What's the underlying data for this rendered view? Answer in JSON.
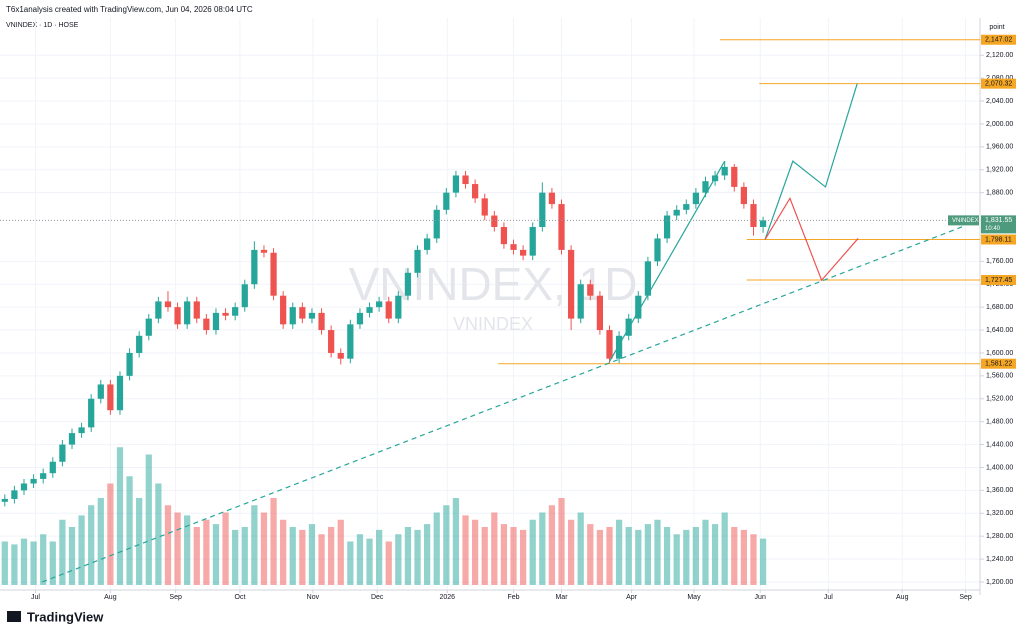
{
  "chart_data": {
    "type": "candlestick",
    "header": "T6x1analysis created with TradingView.com, Jun 04, 2026 08:04 UTC",
    "symbol_line": "VNINDEX · 1D · HOSE",
    "watermark": "VNINDEX, 1D",
    "watermark_sub": "VNINDEX",
    "axis_title": "point",
    "brand": "TradingView",
    "up_color": "#26a69a",
    "down_color": "#ef5350",
    "ylim": [
      1186,
      2185
    ],
    "yticks": [
      {
        "value": 1200,
        "label": "1,200.00"
      },
      {
        "value": 1240,
        "label": "1,240.00"
      },
      {
        "value": 1280,
        "label": "1,280.00"
      },
      {
        "value": 1320,
        "label": "1,320.00"
      },
      {
        "value": 1360,
        "label": "1,360.00"
      },
      {
        "value": 1400,
        "label": "1,400.00"
      },
      {
        "value": 1440,
        "label": "1,440.00"
      },
      {
        "value": 1480,
        "label": "1,480.00"
      },
      {
        "value": 1520,
        "label": "1,520.00"
      },
      {
        "value": 1560,
        "label": "1,560.00"
      },
      {
        "value": 1600,
        "label": "1,600.00"
      },
      {
        "value": 1640,
        "label": "1,640.00"
      },
      {
        "value": 1680,
        "label": "1,680.00"
      },
      {
        "value": 1720,
        "label": "1,720.00"
      },
      {
        "value": 1760,
        "label": "1,760.00"
      },
      {
        "value": 1880,
        "label": "1,880.00"
      },
      {
        "value": 1920,
        "label": "1,920.00"
      },
      {
        "value": 1960,
        "label": "1,960.00"
      },
      {
        "value": 2000,
        "label": "2,000.00"
      },
      {
        "value": 2040,
        "label": "2,040.00"
      },
      {
        "value": 2080,
        "label": "2,080.00"
      },
      {
        "value": 2120,
        "label": "2,120.00"
      }
    ],
    "xlim": [
      -0.5,
      101.6
    ],
    "xticks": [
      {
        "value": 3.2,
        "label": "Jul"
      },
      {
        "value": 11,
        "label": "Aug"
      },
      {
        "value": 17.8,
        "label": "Sep"
      },
      {
        "value": 24.5,
        "label": "Oct"
      },
      {
        "value": 32.1,
        "label": "Nov"
      },
      {
        "value": 38.8,
        "label": "Dec"
      },
      {
        "value": 46.1,
        "label": "2026"
      },
      {
        "value": 53,
        "label": "Feb"
      },
      {
        "value": 58,
        "label": "Mar"
      },
      {
        "value": 65.3,
        "label": "Apr"
      },
      {
        "value": 71.8,
        "label": "May"
      },
      {
        "value": 78.7,
        "label": "Jun"
      },
      {
        "value": 85.8,
        "label": "Jul"
      },
      {
        "value": 93.5,
        "label": "Aug"
      },
      {
        "value": 100.1,
        "label": "Sep"
      }
    ],
    "grid": true,
    "candles": [
      [
        1340,
        1353,
        1332,
        1345
      ],
      [
        1345,
        1368,
        1337,
        1360
      ],
      [
        1360,
        1380,
        1352,
        1372
      ],
      [
        1372,
        1388,
        1364,
        1380
      ],
      [
        1380,
        1398,
        1372,
        1390
      ],
      [
        1390,
        1418,
        1382,
        1410
      ],
      [
        1410,
        1448,
        1402,
        1440
      ],
      [
        1440,
        1468,
        1432,
        1460
      ],
      [
        1460,
        1478,
        1452,
        1470
      ],
      [
        1470,
        1528,
        1462,
        1520
      ],
      [
        1520,
        1553,
        1512,
        1545
      ],
      [
        1545,
        1553,
        1492,
        1500
      ],
      [
        1500,
        1568,
        1492,
        1560
      ],
      [
        1560,
        1608,
        1552,
        1600
      ],
      [
        1600,
        1638,
        1592,
        1630
      ],
      [
        1630,
        1668,
        1622,
        1660
      ],
      [
        1660,
        1698,
        1652,
        1690
      ],
      [
        1690,
        1708,
        1672,
        1680
      ],
      [
        1680,
        1688,
        1642,
        1650
      ],
      [
        1650,
        1698,
        1642,
        1690
      ],
      [
        1690,
        1698,
        1652,
        1660
      ],
      [
        1660,
        1668,
        1632,
        1640
      ],
      [
        1640,
        1678,
        1632,
        1670
      ],
      [
        1670,
        1678,
        1657,
        1665
      ],
      [
        1665,
        1688,
        1657,
        1680
      ],
      [
        1680,
        1728,
        1672,
        1720
      ],
      [
        1720,
        1795,
        1712,
        1780
      ],
      [
        1780,
        1788,
        1767,
        1775
      ],
      [
        1775,
        1783,
        1692,
        1700
      ],
      [
        1700,
        1708,
        1642,
        1650
      ],
      [
        1650,
        1688,
        1642,
        1680
      ],
      [
        1680,
        1688,
        1652,
        1660
      ],
      [
        1660,
        1678,
        1652,
        1670
      ],
      [
        1670,
        1678,
        1632,
        1640
      ],
      [
        1640,
        1648,
        1592,
        1600
      ],
      [
        1600,
        1608,
        1580,
        1590
      ],
      [
        1590,
        1658,
        1582,
        1650
      ],
      [
        1650,
        1678,
        1642,
        1670
      ],
      [
        1670,
        1688,
        1662,
        1680
      ],
      [
        1680,
        1698,
        1672,
        1690
      ],
      [
        1690,
        1698,
        1652,
        1660
      ],
      [
        1660,
        1708,
        1652,
        1700
      ],
      [
        1700,
        1748,
        1692,
        1740
      ],
      [
        1740,
        1788,
        1732,
        1780
      ],
      [
        1780,
        1808,
        1772,
        1800
      ],
      [
        1800,
        1858,
        1792,
        1850
      ],
      [
        1850,
        1888,
        1842,
        1880
      ],
      [
        1880,
        1918,
        1872,
        1910
      ],
      [
        1910,
        1918,
        1887,
        1895
      ],
      [
        1895,
        1903,
        1862,
        1870
      ],
      [
        1870,
        1878,
        1832,
        1840
      ],
      [
        1840,
        1848,
        1812,
        1820
      ],
      [
        1820,
        1828,
        1782,
        1790
      ],
      [
        1790,
        1798,
        1772,
        1780
      ],
      [
        1780,
        1788,
        1762,
        1770
      ],
      [
        1770,
        1828,
        1762,
        1820
      ],
      [
        1820,
        1898,
        1812,
        1880
      ],
      [
        1880,
        1888,
        1852,
        1860
      ],
      [
        1860,
        1868,
        1772,
        1780
      ],
      [
        1780,
        1788,
        1640,
        1660
      ],
      [
        1660,
        1728,
        1652,
        1720
      ],
      [
        1720,
        1728,
        1692,
        1700
      ],
      [
        1700,
        1708,
        1632,
        1640
      ],
      [
        1640,
        1648,
        1582,
        1590
      ],
      [
        1590,
        1638,
        1582,
        1630
      ],
      [
        1630,
        1668,
        1622,
        1660
      ],
      [
        1660,
        1708,
        1652,
        1700
      ],
      [
        1700,
        1768,
        1692,
        1760
      ],
      [
        1760,
        1808,
        1752,
        1800
      ],
      [
        1800,
        1848,
        1792,
        1840
      ],
      [
        1840,
        1858,
        1832,
        1850
      ],
      [
        1850,
        1868,
        1842,
        1860
      ],
      [
        1860,
        1888,
        1852,
        1880
      ],
      [
        1880,
        1908,
        1872,
        1900
      ],
      [
        1900,
        1918,
        1892,
        1910
      ],
      [
        1910,
        1935,
        1902,
        1925
      ],
      [
        1925,
        1930,
        1882,
        1890
      ],
      [
        1890,
        1898,
        1852,
        1860
      ],
      [
        1860,
        1868,
        1805,
        1820
      ],
      [
        1820,
        1838,
        1810,
        1831.55
      ]
    ],
    "volume": [
      30,
      28,
      32,
      30,
      35,
      30,
      45,
      40,
      48,
      55,
      60,
      70,
      95,
      75,
      60,
      90,
      70,
      55,
      50,
      48,
      40,
      45,
      42,
      50,
      38,
      40,
      55,
      50,
      60,
      45,
      40,
      38,
      42,
      35,
      40,
      45,
      30,
      35,
      32,
      38,
      30,
      35,
      40,
      38,
      42,
      50,
      55,
      60,
      48,
      45,
      40,
      50,
      42,
      40,
      38,
      45,
      50,
      55,
      60,
      45,
      50,
      42,
      38,
      40,
      45,
      40,
      38,
      42,
      45,
      40,
      35,
      38,
      40,
      45,
      42,
      50,
      40,
      38,
      35,
      32
    ],
    "volume_lim": [
      0,
      100
    ],
    "levels": [
      {
        "value": 2147.02,
        "label": "2,147.02",
        "x_from": 74.5
      },
      {
        "value": 2070.32,
        "label": "2,070.32",
        "x_from": 78.6
      },
      {
        "value": 1798.11,
        "label": "1,798.11",
        "x_from": 77.3
      },
      {
        "value": 1727.45,
        "label": "1,727.45",
        "x_from": 77.3
      },
      {
        "value": 1581.22,
        "label": "1,581.22",
        "x_from": 51.4
      }
    ],
    "level_color": "#f5a623",
    "last": {
      "value": 1831.55,
      "label": "1,831.55",
      "timer": "10:40",
      "tag": "VNINDEX",
      "color": "#4e9a7c"
    },
    "drawings": [
      {
        "color": "#26a69a",
        "dashed": true,
        "x": [
          3.9,
          100
        ],
        "y": [
          1200,
          1822
        ]
      },
      {
        "color": "#26a69a",
        "dashed": false,
        "x": [
          63,
          75
        ],
        "y": [
          1585,
          1935
        ]
      },
      {
        "color": "#26a69a",
        "dashed": false,
        "x": [
          79.2,
          82.1,
          85.5,
          88.8
        ],
        "y": [
          1798,
          1935,
          1890,
          2070
        ]
      },
      {
        "color": "#ef5350",
        "dashed": false,
        "x": [
          79.2,
          81.8,
          85.1,
          88.9
        ],
        "y": [
          1798,
          1870,
          1727,
          1800
        ]
      }
    ]
  }
}
